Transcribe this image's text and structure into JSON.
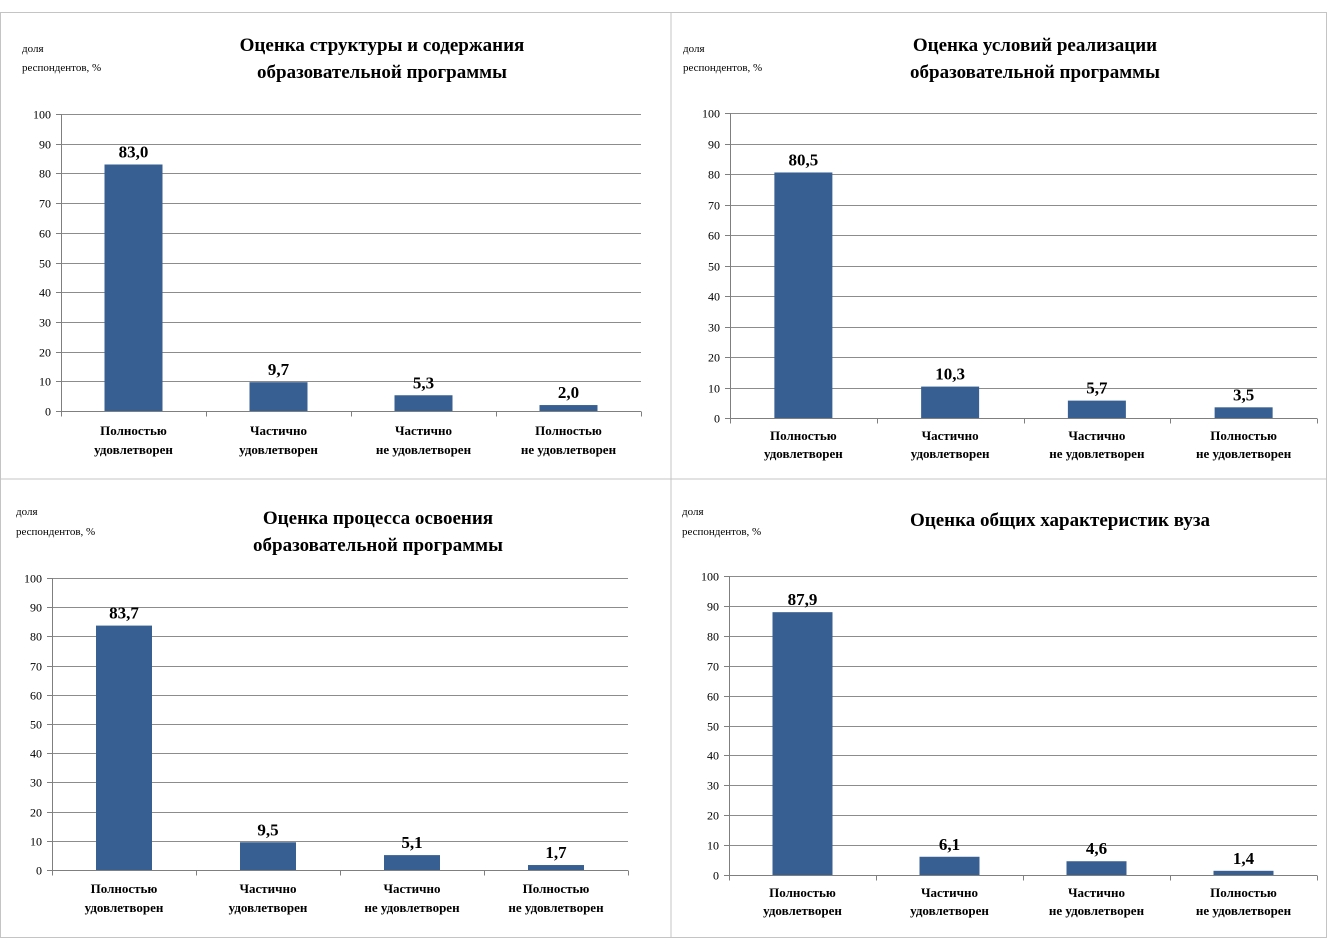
{
  "colors": {
    "bar": "#375f91",
    "grid": "#8c8c8c",
    "axis": "#7f7f7f",
    "border": "#c4c4c4"
  },
  "chart_data": [
    {
      "type": "bar",
      "title": [
        "Оценка структуры и содержания",
        "образовательной программы"
      ],
      "ylabel": [
        "доля",
        "респондентов, %"
      ],
      "categories": [
        [
          "Полностью",
          "удовлетворен"
        ],
        [
          "Частично",
          "удовлетворен"
        ],
        [
          "Частично",
          "не удовлетворен"
        ],
        [
          "Полностью",
          "не удовлетворен"
        ]
      ],
      "values": [
        83.0,
        9.7,
        5.3,
        2.0
      ],
      "value_labels": [
        "83,0",
        "9,7",
        "5,3",
        "2,0"
      ],
      "ylim": [
        0,
        100
      ],
      "yticks": [
        0,
        10,
        20,
        30,
        40,
        50,
        60,
        70,
        80,
        90,
        100
      ],
      "grid": true
    },
    {
      "type": "bar",
      "title": [
        "Оценка условий реализации",
        "образовательной программы"
      ],
      "ylabel": [
        "доля",
        "респондентов, %"
      ],
      "categories": [
        [
          "Полностью",
          "удовлетворен"
        ],
        [
          "Частично",
          "удовлетворен"
        ],
        [
          "Частично",
          "не удовлетворен"
        ],
        [
          "Полностью",
          "не удовлетворен"
        ]
      ],
      "values": [
        80.5,
        10.3,
        5.7,
        3.5
      ],
      "value_labels": [
        "80,5",
        "10,3",
        "5,7",
        "3,5"
      ],
      "ylim": [
        0,
        100
      ],
      "yticks": [
        0,
        10,
        20,
        30,
        40,
        50,
        60,
        70,
        80,
        90,
        100
      ],
      "grid": true
    },
    {
      "type": "bar",
      "title": [
        "Оценка процесса освоения",
        "образовательной программы"
      ],
      "ylabel": [
        "доля",
        "респондентов, %"
      ],
      "categories": [
        [
          "Полностью",
          "удовлетворен"
        ],
        [
          "Частично",
          "удовлетворен"
        ],
        [
          "Частично",
          "не удовлетворен"
        ],
        [
          "Полностью",
          "не удовлетворен"
        ]
      ],
      "values": [
        83.7,
        9.5,
        5.1,
        1.7
      ],
      "value_labels": [
        "83,7",
        "9,5",
        "5,1",
        "1,7"
      ],
      "ylim": [
        0,
        100
      ],
      "yticks": [
        0,
        10,
        20,
        30,
        40,
        50,
        60,
        70,
        80,
        90,
        100
      ],
      "grid": true
    },
    {
      "type": "bar",
      "title": [
        "Оценка общих характеристик вуза"
      ],
      "ylabel": [
        "доля",
        "респондентов, %"
      ],
      "categories": [
        [
          "Полностью",
          "удовлетворен"
        ],
        [
          "Частично",
          "удовлетворен"
        ],
        [
          "Частично",
          "не удовлетворен"
        ],
        [
          "Полностью",
          "не удовлетворен"
        ]
      ],
      "values": [
        87.9,
        6.1,
        4.6,
        1.4
      ],
      "value_labels": [
        "87,9",
        "6,1",
        "4,6",
        "1,4"
      ],
      "ylim": [
        0,
        100
      ],
      "yticks": [
        0,
        10,
        20,
        30,
        40,
        50,
        60,
        70,
        80,
        90,
        100
      ],
      "grid": true
    }
  ]
}
